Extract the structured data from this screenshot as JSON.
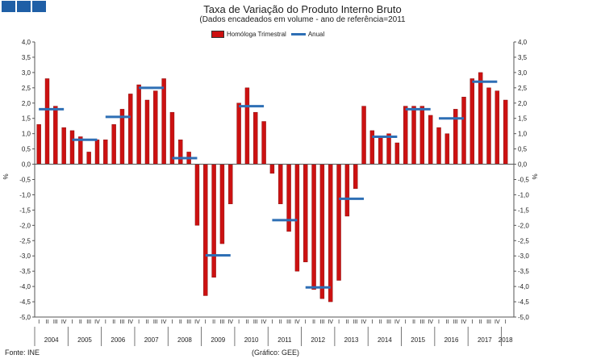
{
  "branding": {
    "logo_color": "#1f5fa6",
    "logo_icon": "three-squares-logo"
  },
  "chart_data": {
    "type": "bar",
    "title": "Taxa de Variação do Produto Interno Bruto",
    "subtitle": "(Dados encadeados em  volume  - ano de referência=2011",
    "xlabel": "",
    "ylabel_left": "%",
    "ylabel_right": "%",
    "ylim": [
      -5.0,
      4.0
    ],
    "ytick_step": 0.5,
    "yticks_left": [
      "4,0",
      "3,5",
      "3,0",
      "2,5",
      "2,0",
      "1,5",
      "1,0",
      "0,5",
      "0,0",
      "-0,5",
      "-1,0",
      "-1,5",
      "-2,0",
      "-2,5",
      "-3,0",
      "-3,5",
      "-4,0",
      "-4,5",
      "-5,0"
    ],
    "yticks_right": [
      "4,0",
      "3,5",
      "3,0",
      "2,5",
      "2,0",
      "1,5",
      "1,0",
      "0,5",
      "0,0",
      "-0,5",
      "-1,0",
      "-1,5",
      "-2,0",
      "-2,5",
      "-3,0",
      "-3,5",
      "-4,0",
      "-4,5",
      "-5,0"
    ],
    "quarter_labels": [
      "I",
      "II",
      "III",
      "IV"
    ],
    "years": [
      "2004",
      "2005",
      "2006",
      "2007",
      "2008",
      "2009",
      "2010",
      "2011",
      "2012",
      "2013",
      "2014",
      "2015",
      "2016",
      "2017",
      "2018"
    ],
    "series": [
      {
        "name": "Homóloga Trimestral",
        "color": "#cc1111",
        "values": [
          1.3,
          2.8,
          1.9,
          1.2,
          1.1,
          0.9,
          0.4,
          0.8,
          0.8,
          1.3,
          1.8,
          2.3,
          2.6,
          2.1,
          2.4,
          2.8,
          1.7,
          0.8,
          0.4,
          -2.0,
          -4.3,
          -3.7,
          -2.6,
          -1.3,
          2.0,
          2.5,
          1.7,
          1.4,
          -0.3,
          -1.3,
          -2.2,
          -3.5,
          -3.2,
          -4.1,
          -4.4,
          -4.5,
          -3.8,
          -1.7,
          -0.8,
          1.9,
          1.1,
          0.9,
          1.0,
          0.7,
          1.9,
          1.9,
          1.9,
          1.6,
          1.2,
          1.0,
          1.8,
          2.2,
          2.8,
          3.0,
          2.5,
          2.4,
          2.1
        ]
      },
      {
        "name": "Anual",
        "color": "#2e6fb5",
        "values": [
          1.8,
          0.8,
          1.55,
          2.5,
          0.2,
          -2.98,
          1.9,
          -1.83,
          -4.03,
          -1.13,
          0.9,
          1.8,
          1.5,
          2.7
        ]
      }
    ],
    "legend_position": "top-center"
  },
  "footer": {
    "source": "Fonte: INE",
    "credit": "(Gráfico: GEE)"
  }
}
